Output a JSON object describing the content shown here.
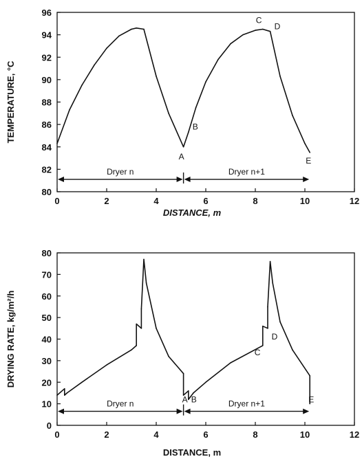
{
  "chart_data": [
    {
      "type": "line",
      "xlabel": "DISTANCE, m",
      "ylabel": "TEMPERATURE, °C",
      "xlim": [
        0,
        12
      ],
      "ylim": [
        80,
        96
      ],
      "xticks": [
        0,
        2,
        4,
        6,
        8,
        10,
        12
      ],
      "yticks": [
        80,
        82,
        84,
        86,
        88,
        90,
        92,
        94,
        96
      ],
      "grid": false,
      "x": [
        0,
        0.5,
        1,
        1.5,
        2,
        2.5,
        3,
        3.2,
        3.5,
        4,
        4.5,
        5.1,
        5.3,
        5.6,
        6,
        6.5,
        7,
        7.5,
        8,
        8.3,
        8.6,
        9,
        9.5,
        10,
        10.2
      ],
      "series": [
        {
          "values": [
            84.3,
            87.3,
            89.5,
            91.3,
            92.8,
            93.9,
            94.5,
            94.6,
            94.5,
            90.3,
            87,
            84,
            85.3,
            87.5,
            89.8,
            91.8,
            93.2,
            94,
            94.4,
            94.5,
            94.3,
            90.3,
            86.8,
            84.3,
            83.5
          ]
        }
      ],
      "annotations": [
        {
          "text": "A",
          "x": 5.1,
          "y": 84
        },
        {
          "text": "B",
          "x": 5.3,
          "y": 85.3
        },
        {
          "text": "C",
          "x": 8.3,
          "y": 94.5
        },
        {
          "text": "D",
          "x": 8.6,
          "y": 94.3
        },
        {
          "text": "E",
          "x": 10.2,
          "y": 83.5
        }
      ],
      "regions": [
        {
          "label": "Dryer n",
          "from": 0,
          "to": 5.1
        },
        {
          "label": "Dryer n+1",
          "from": 5.1,
          "to": 10.2
        }
      ],
      "region_arrow_y": 81.1
    },
    {
      "type": "line",
      "xlabel": "DISTANCE, m",
      "ylabel": "DRYING RATE, kg/m²/h",
      "xlim": [
        0,
        12
      ],
      "ylim": [
        0,
        80
      ],
      "xticks": [
        0,
        2,
        4,
        6,
        8,
        10,
        12
      ],
      "yticks": [
        0,
        10,
        20,
        30,
        40,
        50,
        60,
        70,
        80
      ],
      "grid": false,
      "x": [
        0,
        0.3,
        0.3,
        0.4,
        1,
        2,
        3,
        3.2,
        3.2,
        3.4,
        3.4,
        3.5,
        3.6,
        4,
        4.5,
        5.1,
        5.1,
        5.3,
        5.3,
        5.5,
        6,
        7,
        8.3,
        8.3,
        8.5,
        8.5,
        8.6,
        8.7,
        9,
        9.5,
        10.2,
        10.2
      ],
      "series": [
        {
          "values": [
            14,
            17,
            14,
            15,
            20,
            28,
            35,
            37,
            47,
            45,
            54,
            77,
            66,
            45,
            32,
            24,
            14,
            16,
            12,
            15,
            20,
            29,
            37,
            46,
            45,
            55,
            76,
            66,
            48,
            35,
            23,
            10
          ]
        }
      ],
      "annotations": [
        {
          "text": "A",
          "x": 5.1,
          "y": 12
        },
        {
          "text": "B",
          "x": 5.3,
          "y": 12
        },
        {
          "text": "C",
          "x": 8.3,
          "y": 37
        },
        {
          "text": "D",
          "x": 8.6,
          "y": 45
        },
        {
          "text": "E",
          "x": 10.2,
          "y": 12
        }
      ],
      "regions": [
        {
          "label": "Dryer n",
          "from": 0,
          "to": 5.1
        },
        {
          "label": "Dryer n+1",
          "from": 5.1,
          "to": 10.2
        }
      ],
      "region_arrow_y": 6.5
    }
  ]
}
